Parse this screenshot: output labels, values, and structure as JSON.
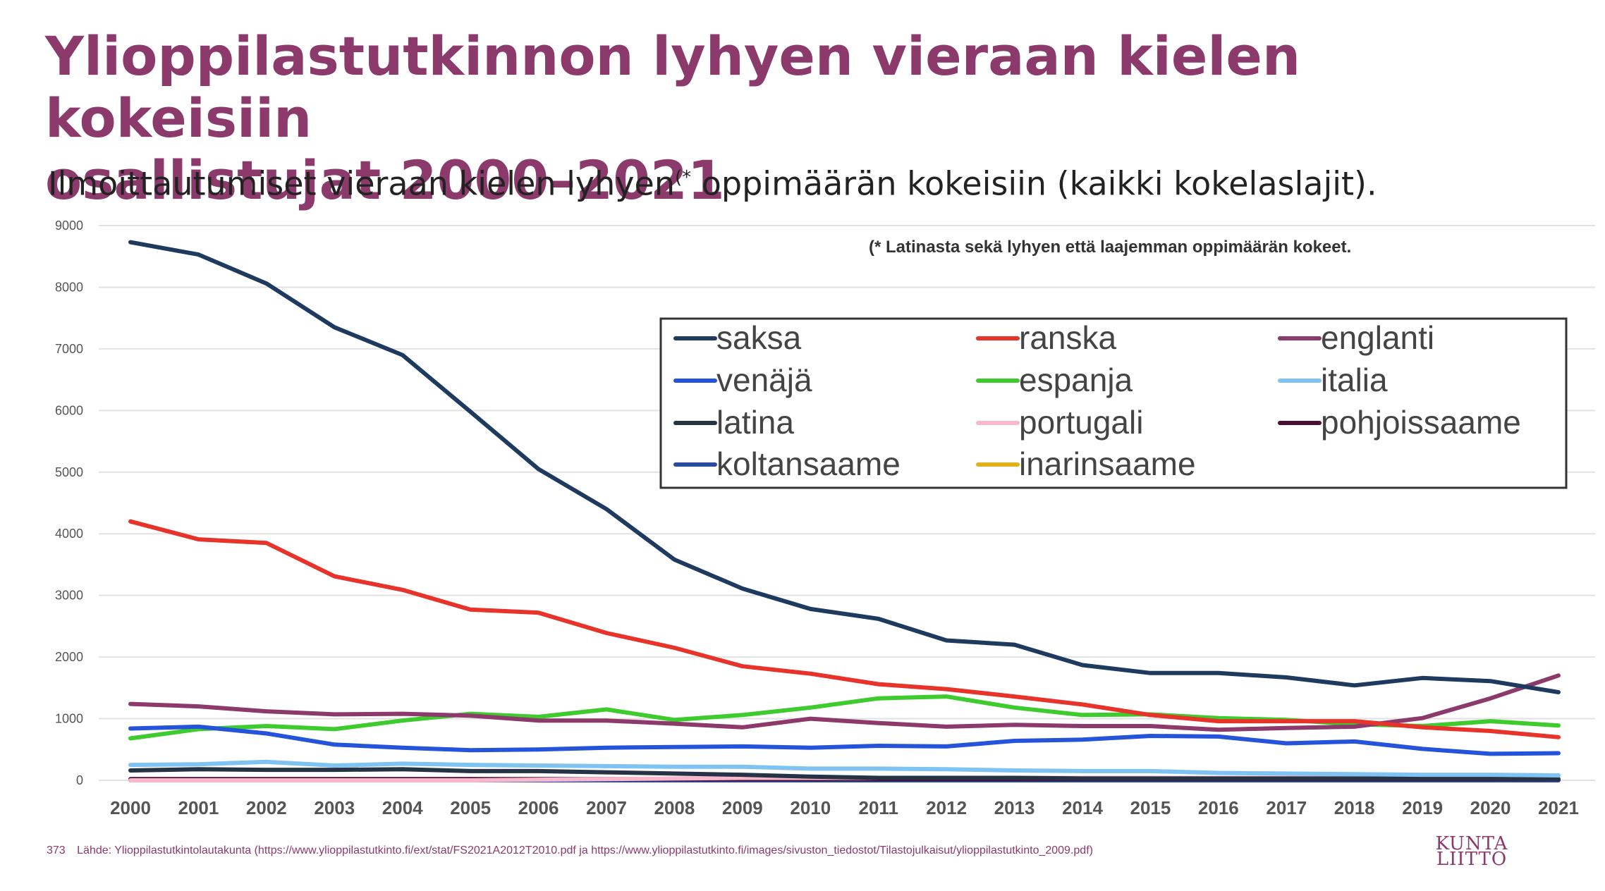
{
  "slide": {
    "title_line1": "Ylioppilastutkinnon lyhyen vieraan kielen kokeisiin",
    "title_line2": "osallistujat 2000–2021",
    "subtitle_pre": "Ilmoittautumiset vieraan kielen lyhyen",
    "subtitle_sup": "(*",
    "subtitle_post": " oppimäärän kokeisiin (kaikki kokelaslajit).",
    "page_number": "373",
    "source": "Lähde: Ylioppilastutkintolautakunta (https://www.ylioppilastutkinto.fi/ext/stat/FS2021A2012T2010.pdf ja https://www.ylioppilastutkinto.fi/images/sivuston_tiedostot/Tilastojulkaisut/ylioppilastutkinto_2009.pdf)",
    "logo_line1": "KUNTA",
    "logo_line2": "LIITTO"
  },
  "chart_data": {
    "type": "line",
    "annotation": "(* Latinasta sekä lyhyen että laajemman oppimäärän kokeet.",
    "x": [
      "2000",
      "2001",
      "2002",
      "2003",
      "2004",
      "2005",
      "2006",
      "2007",
      "2008",
      "2009",
      "2010",
      "2011",
      "2012",
      "2013",
      "2014",
      "2015",
      "2016",
      "2017",
      "2018",
      "2019",
      "2020",
      "2021"
    ],
    "ylim": [
      0,
      9000
    ],
    "yticks": [
      "0",
      "1000",
      "2000",
      "3000",
      "4000",
      "5000",
      "6000",
      "7000",
      "8000",
      "9000"
    ],
    "grid": true,
    "legend_position": "top-right",
    "series": [
      {
        "name": "saksa",
        "color": "#1f3a5f",
        "values": [
          8730,
          8530,
          8060,
          7350,
          6900,
          5980,
          5050,
          4400,
          3580,
          3110,
          2780,
          2620,
          2270,
          2200,
          1870,
          1740,
          1740,
          1670,
          1540,
          1660,
          1610,
          1430
        ]
      },
      {
        "name": "ranska",
        "color": "#e8332a",
        "values": [
          4200,
          3910,
          3850,
          3310,
          3090,
          2770,
          2720,
          2390,
          2150,
          1850,
          1730,
          1560,
          1480,
          1360,
          1230,
          1060,
          960,
          960,
          960,
          860,
          800,
          700
        ]
      },
      {
        "name": "englanti",
        "color": "#8b3a6b",
        "values": [
          1240,
          1200,
          1120,
          1070,
          1080,
          1050,
          970,
          970,
          920,
          860,
          1000,
          930,
          870,
          900,
          880,
          880,
          820,
          850,
          870,
          1010,
          1330,
          1700
        ]
      },
      {
        "name": "venäjä",
        "color": "#2553d9",
        "values": [
          840,
          870,
          760,
          580,
          530,
          490,
          500,
          530,
          540,
          550,
          530,
          560,
          550,
          640,
          660,
          720,
          710,
          600,
          630,
          510,
          430,
          440
        ]
      },
      {
        "name": "espanja",
        "color": "#3ecb2e",
        "values": [
          680,
          830,
          880,
          830,
          970,
          1080,
          1030,
          1150,
          980,
          1060,
          1180,
          1330,
          1360,
          1180,
          1060,
          1070,
          1010,
          980,
          910,
          880,
          960,
          890
        ]
      },
      {
        "name": "italia",
        "color": "#7fc3f2",
        "values": [
          250,
          260,
          300,
          240,
          270,
          250,
          240,
          230,
          220,
          220,
          190,
          190,
          180,
          160,
          150,
          150,
          120,
          110,
          100,
          90,
          90,
          80
        ]
      },
      {
        "name": "latina",
        "color": "#253345",
        "values": [
          160,
          180,
          170,
          170,
          180,
          150,
          150,
          130,
          110,
          90,
          60,
          40,
          40,
          40,
          30,
          30,
          30,
          30,
          30,
          30,
          30,
          20
        ]
      },
      {
        "name": "portugali",
        "color": "#f7b8cd",
        "values": [
          0,
          0,
          0,
          0,
          0,
          0,
          10,
          20,
          30,
          40,
          40,
          40,
          40,
          40,
          40,
          40,
          40,
          40,
          40,
          40,
          40,
          40
        ]
      },
      {
        "name": "pohjoissaame",
        "color": "#4a1030",
        "values": [
          20,
          20,
          20,
          20,
          20,
          20,
          20,
          20,
          20,
          20,
          20,
          20,
          20,
          20,
          20,
          20,
          20,
          20,
          20,
          20,
          20,
          20
        ]
      },
      {
        "name": "koltansaame",
        "color": "#2a4aa0",
        "values": [
          0,
          0,
          0,
          0,
          0,
          0,
          0,
          0,
          0,
          0,
          0,
          0,
          0,
          0,
          0,
          0,
          0,
          0,
          0,
          0,
          0,
          0
        ]
      },
      {
        "name": "inarinsaame",
        "color": "#e0b21a",
        "values": [
          0,
          0,
          0,
          0,
          0,
          0,
          0,
          0,
          0,
          0,
          0,
          0,
          0,
          0,
          0,
          0,
          0,
          0,
          5,
          10,
          10,
          10
        ]
      }
    ]
  }
}
